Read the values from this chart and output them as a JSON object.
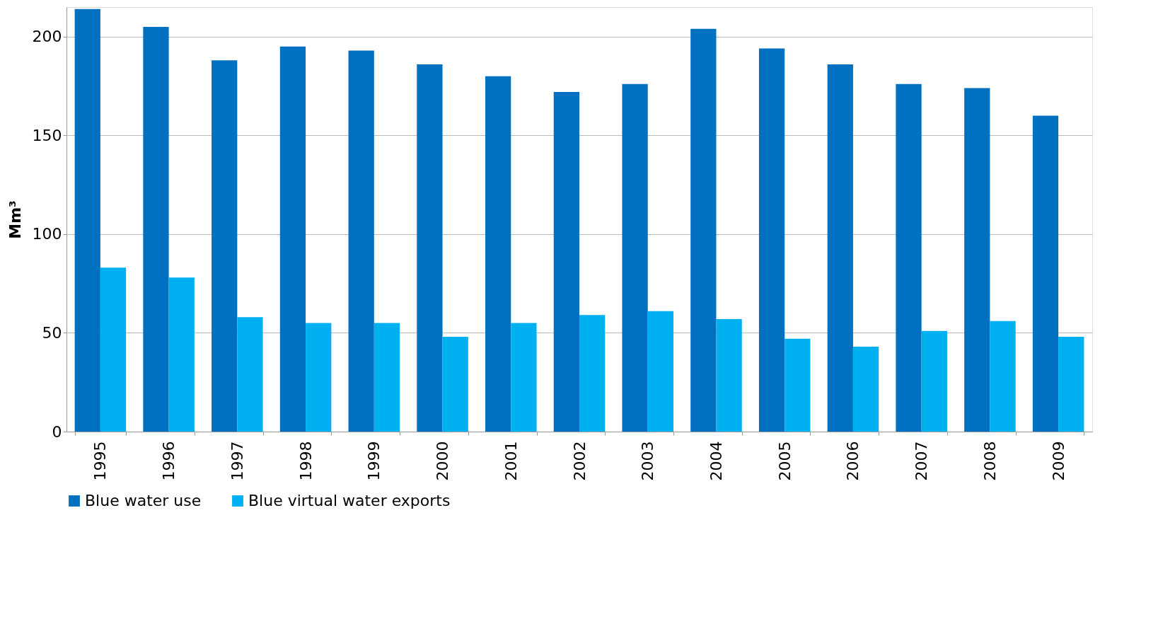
{
  "chart_data": {
    "type": "bar",
    "ylabel": "Mm³",
    "categories": [
      "1995",
      "1996",
      "1997",
      "1998",
      "1999",
      "2000",
      "2001",
      "2002",
      "2003",
      "2004",
      "2005",
      "2006",
      "2007",
      "2008",
      "2009"
    ],
    "series": [
      {
        "name": "Blue water use",
        "color": "#0070c0",
        "values": [
          214,
          205,
          188,
          195,
          193,
          186,
          180,
          172,
          176,
          204,
          194,
          186,
          176,
          174,
          160
        ]
      },
      {
        "name": "Blue virtual water exports",
        "color": "#00b0f0",
        "values": [
          83,
          78,
          58,
          55,
          55,
          48,
          55,
          59,
          61,
          57,
          47,
          43,
          51,
          56,
          48
        ]
      }
    ],
    "ylim": [
      0,
      215
    ],
    "yticks": [
      0,
      50,
      100,
      150,
      200
    ],
    "grid": "y",
    "legend": "bottom"
  }
}
